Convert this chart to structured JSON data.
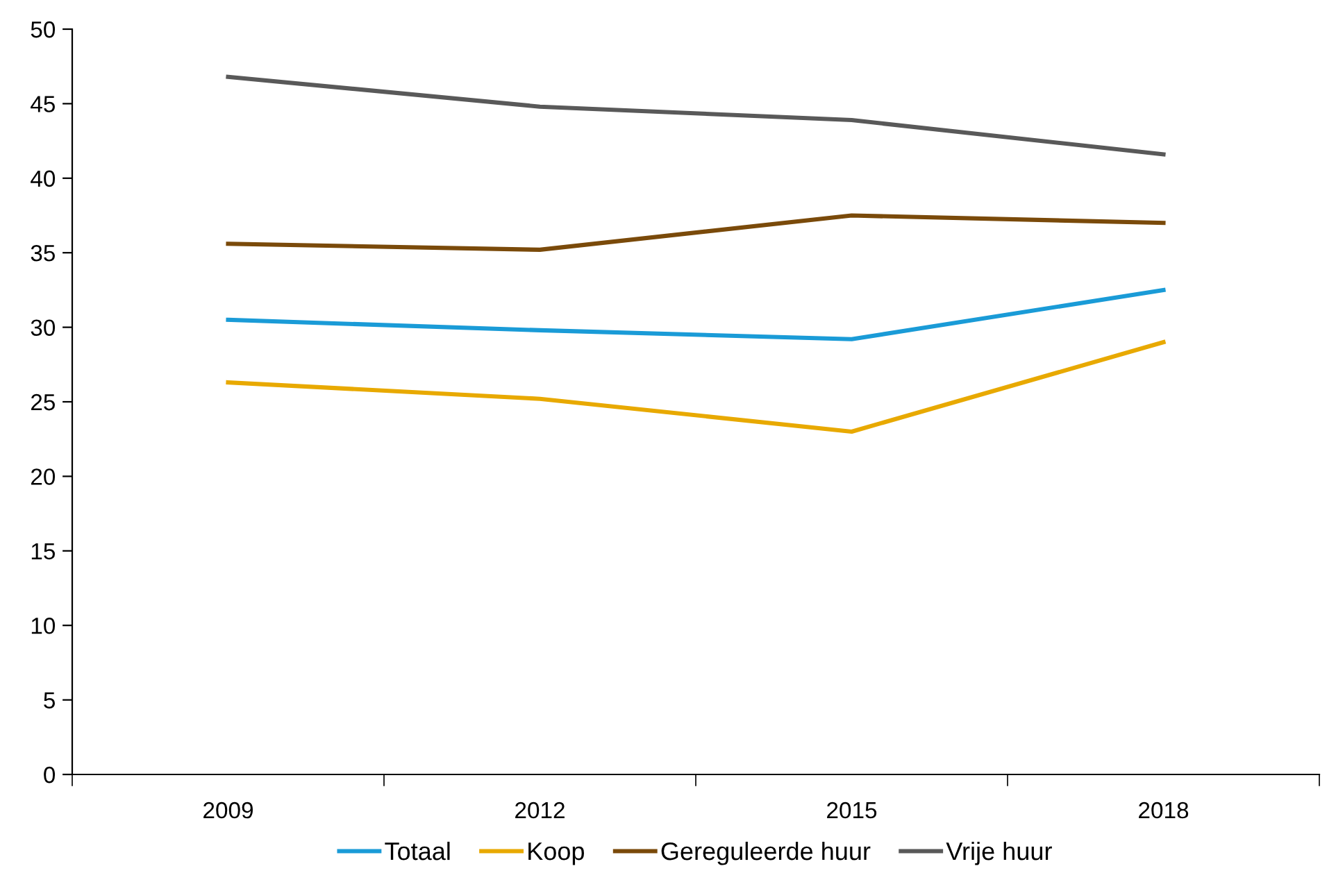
{
  "chart_data": {
    "type": "line",
    "categories": [
      "2009",
      "2012",
      "2015",
      "2018"
    ],
    "series": [
      {
        "name": "Totaal",
        "color": "#1a9bd7",
        "values": [
          30.5,
          29.8,
          29.2,
          32.5
        ]
      },
      {
        "name": "Koop",
        "color": "#e8a900",
        "values": [
          26.3,
          25.2,
          23.0,
          29.0
        ]
      },
      {
        "name": "Gereguleerde huur",
        "color": "#7a4a0a",
        "values": [
          35.6,
          35.2,
          37.5,
          37.0
        ]
      },
      {
        "name": "Vrije huur",
        "color": "#595959",
        "values": [
          46.8,
          44.8,
          43.9,
          41.6
        ]
      }
    ],
    "ylim": [
      0,
      50
    ],
    "yticks": [
      0,
      5,
      10,
      15,
      20,
      25,
      30,
      35,
      40,
      45,
      50
    ],
    "grid": false,
    "legend": "bottom",
    "marker": "none",
    "line_style": "solid"
  }
}
